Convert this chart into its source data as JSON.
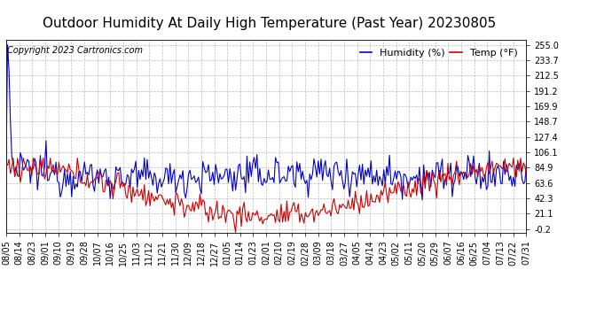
{
  "title": "Outdoor Humidity At Daily High Temperature (Past Year) 20230805",
  "copyright": "Copyright 2023 Cartronics.com",
  "legend_humidity": "Humidity (%)",
  "legend_temp": "Temp (°F)",
  "humidity_color": "#0000cc",
  "temp_color": "#cc0000",
  "background_color": "#ffffff",
  "grid_color": "#aaaaaa",
  "yticks": [
    255.0,
    233.7,
    212.5,
    191.2,
    169.9,
    148.7,
    127.4,
    106.1,
    84.9,
    63.6,
    42.3,
    21.1,
    -0.2
  ],
  "ylim": [
    -5.0,
    262.0
  ],
  "x_labels": [
    "08/05",
    "08/14",
    "08/23",
    "09/01",
    "09/10",
    "09/19",
    "09/28",
    "10/07",
    "10/16",
    "10/25",
    "11/03",
    "11/12",
    "11/21",
    "11/30",
    "12/09",
    "12/18",
    "12/27",
    "01/05",
    "01/14",
    "01/23",
    "02/01",
    "02/10",
    "02/19",
    "02/28",
    "03/09",
    "03/18",
    "03/27",
    "04/05",
    "04/14",
    "04/23",
    "05/02",
    "05/11",
    "05/20",
    "05/29",
    "06/07",
    "06/16",
    "06/25",
    "07/04",
    "07/13",
    "07/22",
    "07/31"
  ],
  "title_fontsize": 11,
  "copyright_fontsize": 7,
  "legend_fontsize": 8,
  "tick_fontsize": 7,
  "line_width": 0.8,
  "n_days": 366
}
